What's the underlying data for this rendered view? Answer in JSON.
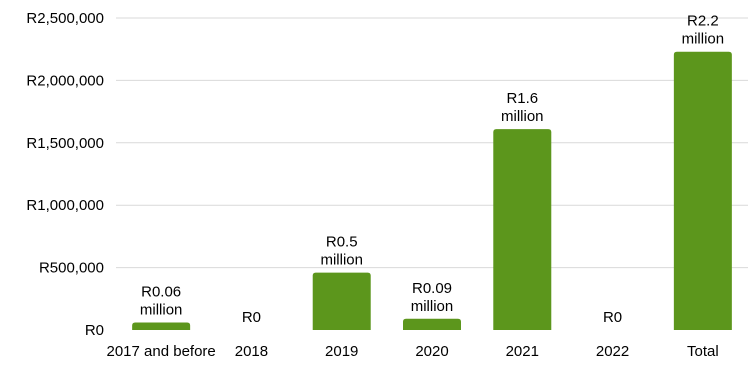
{
  "chart_data": {
    "type": "bar",
    "categories": [
      "2017 and before",
      "2018",
      "2019",
      "2020",
      "2021",
      "2022",
      "Total"
    ],
    "values": [
      60000,
      0,
      460000,
      90000,
      1610000,
      0,
      2230000
    ],
    "data_labels": [
      [
        "R0.06",
        "million"
      ],
      [
        "R0"
      ],
      [
        "R0.5",
        "million"
      ],
      [
        "R0.09",
        "million"
      ],
      [
        "R1.6",
        "million"
      ],
      [
        "R0"
      ],
      [
        "R2.2",
        "million"
      ]
    ],
    "ylim": [
      0,
      2500000
    ],
    "y_ticks": [
      0,
      500000,
      1000000,
      1500000,
      2000000,
      2500000
    ],
    "y_tick_labels": [
      "R0",
      "R500,000",
      "R1,000,000",
      "R1,500,000",
      "R2,000,000",
      "R2,500,000"
    ],
    "bar_color": "#5c961c",
    "grid": true,
    "legend": false
  }
}
